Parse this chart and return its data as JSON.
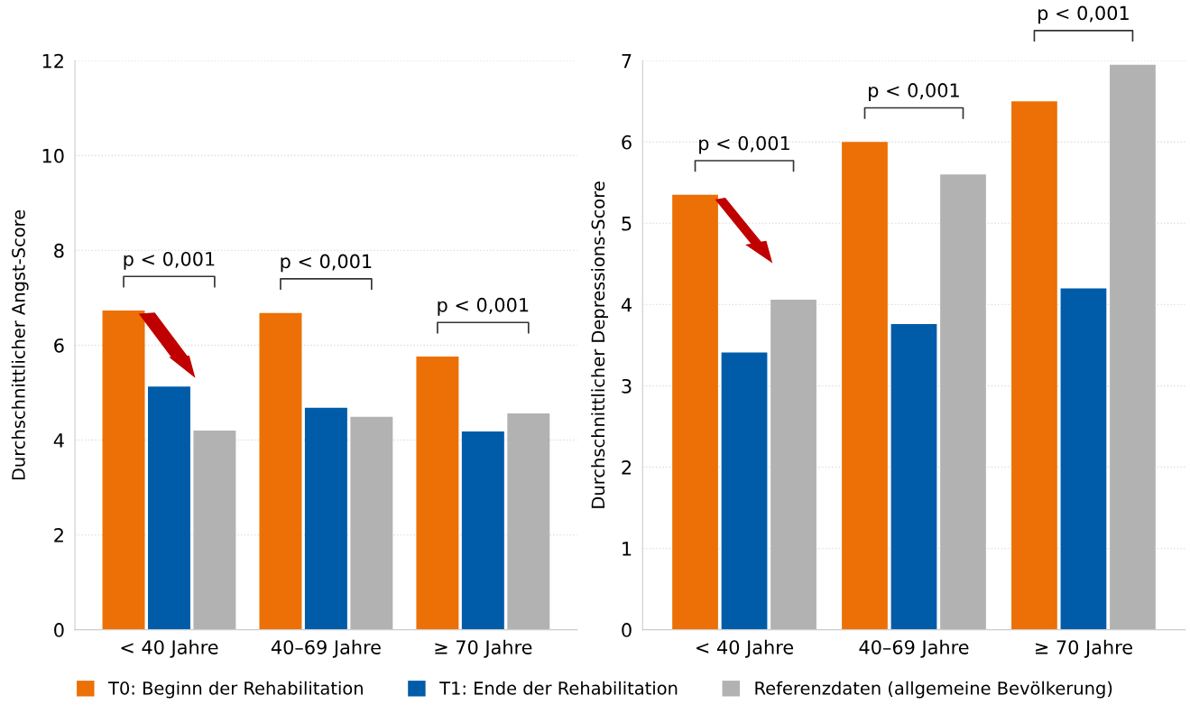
{
  "chart_data": [
    {
      "type": "bar",
      "ylabel": "Durchschnittlicher Angst-Score",
      "categories": [
        "< 40 Jahre",
        "40–69 Jahre",
        "≥ 70 Jahre"
      ],
      "series": [
        {
          "name": "T0: Beginn der Rehabilitation",
          "color": "#ec7005",
          "values": [
            6.73,
            6.68,
            5.76
          ]
        },
        {
          "name": "T1: Ende der Rehabilitation",
          "color": "#005ca9",
          "values": [
            5.13,
            4.68,
            4.18
          ]
        },
        {
          "name": "Referenzdaten (allgemeine Bevölkerung)",
          "color": "#b2b2b2",
          "values": [
            4.2,
            4.49,
            4.56
          ]
        }
      ],
      "ylim": [
        0,
        12
      ],
      "yticks": [
        0,
        2,
        4,
        6,
        8,
        10,
        12
      ],
      "grid": "y",
      "legend": "bottom",
      "annotations": [
        "p < 0,001",
        "p < 0,001",
        "p < 0,001"
      ]
    },
    {
      "type": "bar",
      "ylabel": "Durchschnittlicher Depressions-Score",
      "categories": [
        "< 40 Jahre",
        "40–69 Jahre",
        "≥ 70 Jahre"
      ],
      "series": [
        {
          "color": "#ec7005",
          "values": [
            5.35,
            6.0,
            6.5
          ]
        },
        {
          "color": "#005ca9",
          "values": [
            3.41,
            3.76,
            4.2
          ]
        },
        {
          "color": "#b2b2b2",
          "values": [
            4.06,
            5.6,
            6.95
          ]
        }
      ],
      "ylim": [
        0,
        7
      ],
      "yticks": [
        0,
        1,
        2,
        3,
        4,
        5,
        6,
        7
      ],
      "grid": "y",
      "annotations": [
        "p < 0,001",
        "p < 0,001",
        "p < 0,001"
      ]
    }
  ]
}
